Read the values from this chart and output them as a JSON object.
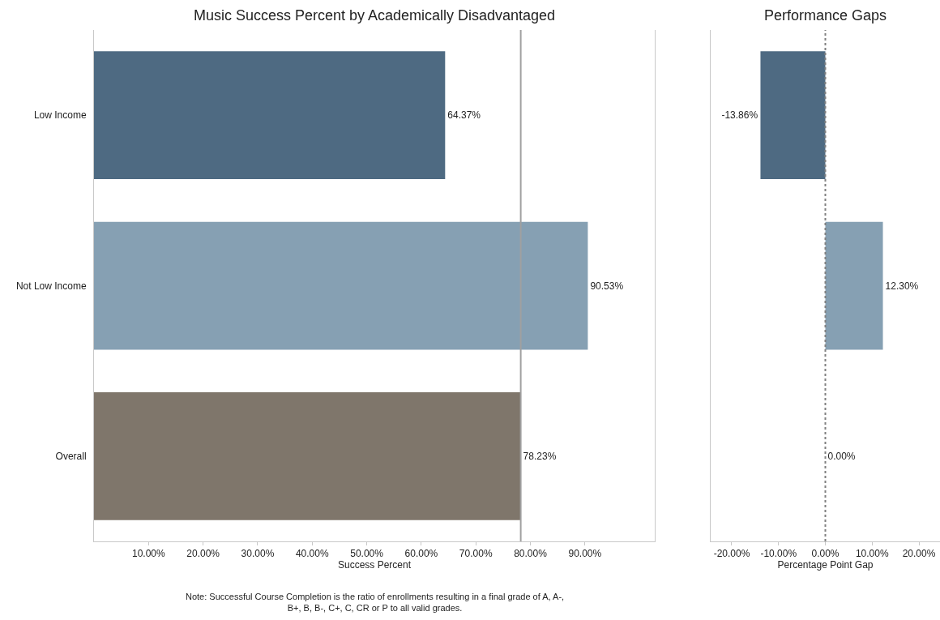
{
  "chart_data": [
    {
      "type": "bar",
      "orientation": "horizontal",
      "title": "Music Success Percent by Academically Disadvantaged",
      "xlabel": "Success Percent",
      "categories": [
        "Low Income",
        "Not Low Income",
        "Overall"
      ],
      "values": [
        64.37,
        90.53,
        78.23
      ],
      "value_labels": [
        "64.37%",
        "90.53%",
        "78.23%"
      ],
      "colors": [
        "#4e6a82",
        "#86a0b3",
        "#7f766b"
      ],
      "xlim": [
        0,
        102.8
      ],
      "xticks": [
        {
          "value": 10,
          "label": "10.00%"
        },
        {
          "value": 20,
          "label": "20.00%"
        },
        {
          "value": 30,
          "label": "30.00%"
        },
        {
          "value": 40,
          "label": "40.00%"
        },
        {
          "value": 50,
          "label": "50.00%"
        },
        {
          "value": 60,
          "label": "60.00%"
        },
        {
          "value": 70,
          "label": "70.00%"
        },
        {
          "value": 80,
          "label": "80.00%"
        },
        {
          "value": 90,
          "label": "90.00%"
        }
      ],
      "ref_lines": [
        {
          "axis": "x",
          "value": 78.23,
          "color": "#a0a0a0",
          "line_style": "solid"
        }
      ],
      "grid": false,
      "annotations": [
        "Note: Successful Course Completion is the ratio of enrollments resulting in a final grade of A, A-, B+, B, B-, C+, C, CR or P to all valid grades."
      ]
    },
    {
      "type": "bar",
      "orientation": "horizontal",
      "title": "Performance Gaps",
      "xlabel": "Percentage Point Gap",
      "categories": [
        null,
        null,
        null
      ],
      "values": [
        -13.86,
        12.3,
        0
      ],
      "value_labels": [
        "-13.86%",
        "12.30%",
        "0.00%"
      ],
      "colors": [
        "#4e6a82",
        "#86a0b3",
        "#7f766b"
      ],
      "xlim": [
        -24.5,
        24.5
      ],
      "xticks": [
        {
          "value": -20,
          "label": "-20.00%"
        },
        {
          "value": -10,
          "label": "-10.00%"
        },
        {
          "value": 0,
          "label": "0.00%"
        },
        {
          "value": 10,
          "label": "10.00%"
        },
        {
          "value": 20,
          "label": "20.00%"
        }
      ],
      "ref_lines": [
        {
          "axis": "x",
          "value": 0,
          "color": "#808080",
          "line_style": "dotted"
        }
      ],
      "grid": false,
      "tick_labels": "x"
    }
  ]
}
